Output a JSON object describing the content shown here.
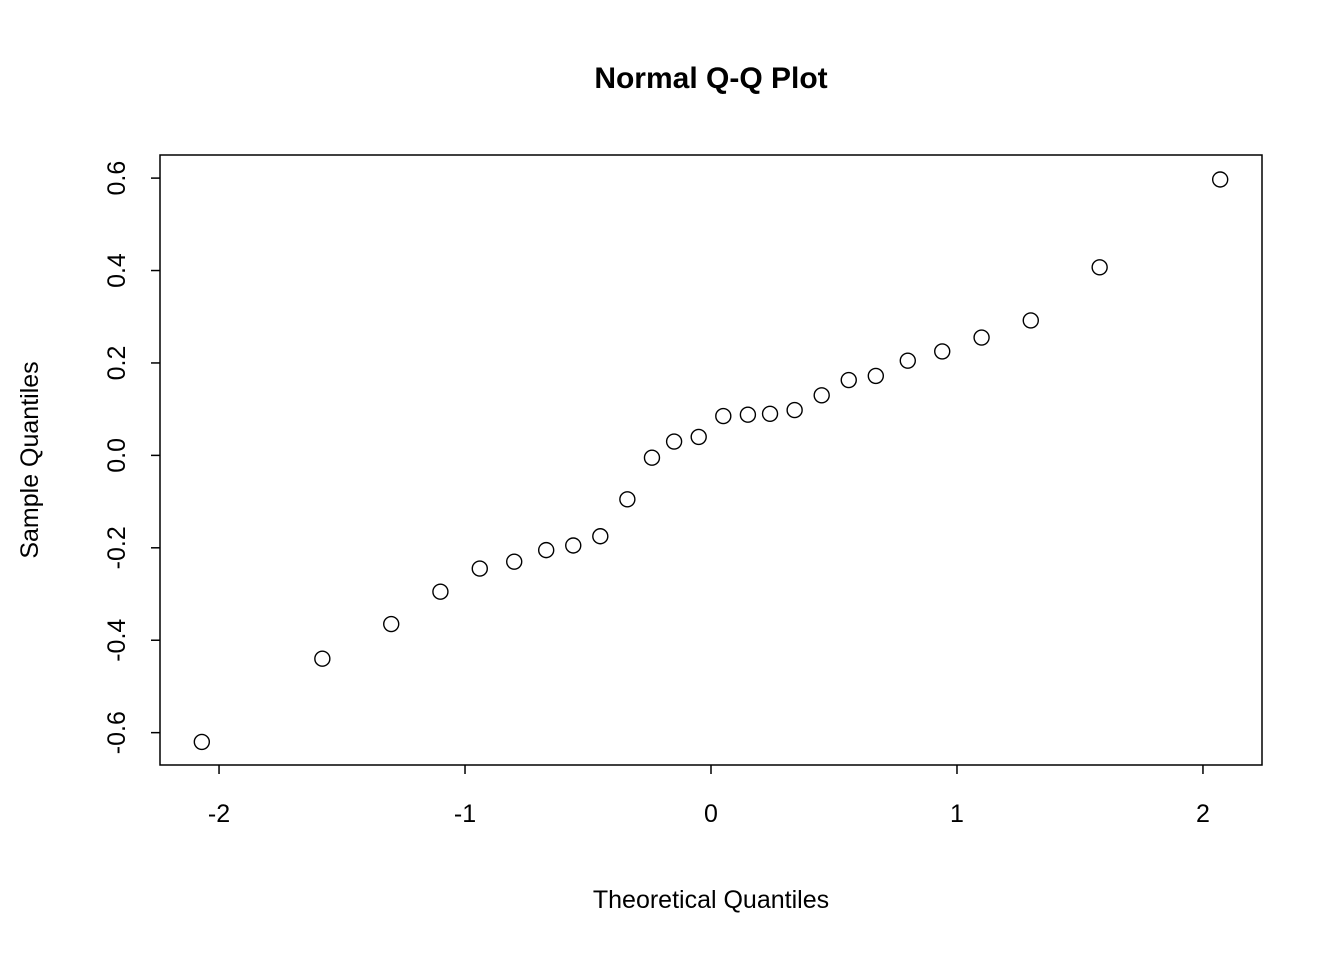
{
  "chart_data": {
    "type": "scatter",
    "title": "Normal Q-Q Plot",
    "xlabel": "Theoretical Quantiles",
    "ylabel": "Sample Quantiles",
    "xlim": [
      -2.24,
      2.24
    ],
    "ylim": [
      -0.67,
      0.65
    ],
    "xtick_values": [
      -2,
      -1,
      0,
      1,
      2
    ],
    "xtick_labels": [
      "-2",
      "-1",
      "0",
      "1",
      "2"
    ],
    "ytick_values": [
      -0.6,
      -0.4,
      -0.2,
      0.0,
      0.2,
      0.4,
      0.6
    ],
    "ytick_labels": [
      "-0.6",
      "-0.4",
      "-0.2",
      "0.0",
      "0.2",
      "0.4",
      "0.6"
    ],
    "grid": false,
    "legend": "none",
    "point_style": {
      "shape": "open-circle",
      "radius": 7.5,
      "stroke": "#000000",
      "stroke_width": 1.4,
      "fill": "none"
    },
    "points": [
      {
        "x": -2.07,
        "y": -0.62
      },
      {
        "x": -1.58,
        "y": -0.44
      },
      {
        "x": -1.3,
        "y": -0.365
      },
      {
        "x": -1.1,
        "y": -0.295
      },
      {
        "x": -0.94,
        "y": -0.245
      },
      {
        "x": -0.8,
        "y": -0.23
      },
      {
        "x": -0.67,
        "y": -0.205
      },
      {
        "x": -0.56,
        "y": -0.195
      },
      {
        "x": -0.45,
        "y": -0.175
      },
      {
        "x": -0.34,
        "y": -0.095
      },
      {
        "x": -0.24,
        "y": -0.005
      },
      {
        "x": -0.15,
        "y": 0.03
      },
      {
        "x": -0.05,
        "y": 0.04
      },
      {
        "x": 0.05,
        "y": 0.085
      },
      {
        "x": 0.15,
        "y": 0.088
      },
      {
        "x": 0.24,
        "y": 0.09
      },
      {
        "x": 0.34,
        "y": 0.098
      },
      {
        "x": 0.45,
        "y": 0.13
      },
      {
        "x": 0.56,
        "y": 0.163
      },
      {
        "x": 0.67,
        "y": 0.172
      },
      {
        "x": 0.8,
        "y": 0.205
      },
      {
        "x": 0.94,
        "y": 0.225
      },
      {
        "x": 1.1,
        "y": 0.255
      },
      {
        "x": 1.3,
        "y": 0.292
      },
      {
        "x": 1.58,
        "y": 0.407
      },
      {
        "x": 2.07,
        "y": 0.597
      }
    ]
  }
}
